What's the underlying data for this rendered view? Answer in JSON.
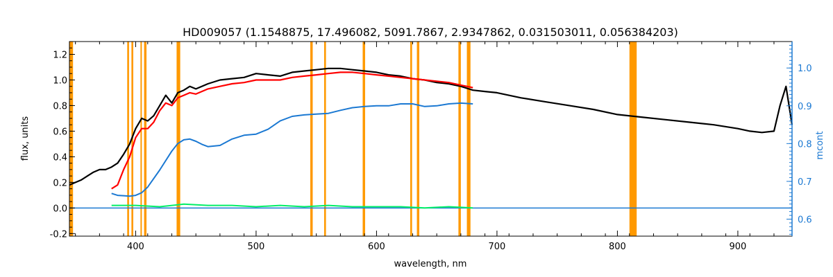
{
  "chart_data": {
    "type": "line",
    "title": "HD009057    (1.1548875, 17.496082, 5091.7867, 2.9347862, 0.031503011, 0.056384203)",
    "xlabel": "wavelength, nm",
    "ylabel": "flux, units",
    "y2label": "mcont",
    "xlim": [
      345,
      945
    ],
    "ylim": [
      -0.22,
      1.3
    ],
    "y2lim": [
      0.555,
      1.07
    ],
    "x_ticks": [
      400,
      500,
      600,
      700,
      800,
      900
    ],
    "y_ticks": [
      -0.2,
      0.0,
      0.2,
      0.4,
      0.6,
      0.8,
      1.0,
      1.2
    ],
    "y2_ticks": [
      0.6,
      0.7,
      0.8,
      0.9,
      1.0
    ],
    "x_tick_labels": [
      "400",
      "500",
      "600",
      "700",
      "800",
      "900"
    ],
    "y_tick_labels": [
      "-0.2",
      "0.0",
      "0.2",
      "0.4",
      "0.6",
      "0.8",
      "1.0",
      "1.2"
    ],
    "y2_tick_labels": [
      "0.6",
      "0.7",
      "0.8",
      "0.9",
      "1.0"
    ],
    "grid": false,
    "colors": {
      "observed": "#000000",
      "model": "#ff0000",
      "continuum": "#1a78d2",
      "residual": "#00ee66",
      "masked": "#ff9900",
      "right_axis": "#1a78d2"
    },
    "masked_bands": [
      [
        345,
        348
      ],
      [
        393,
        394.5
      ],
      [
        396.5,
        398
      ],
      [
        404,
        405
      ],
      [
        407,
        409
      ],
      [
        434,
        437
      ],
      [
        545,
        547
      ],
      [
        556.5,
        558
      ],
      [
        588.5,
        590.5
      ],
      [
        628,
        629.5
      ],
      [
        633.5,
        635.5
      ],
      [
        668,
        670
      ],
      [
        675,
        678
      ],
      [
        810,
        816
      ]
    ],
    "series": [
      {
        "key": "observed",
        "x": [
          345,
          350,
          355,
          360,
          365,
          370,
          375,
          380,
          385,
          390,
          395,
          400,
          405,
          410,
          415,
          420,
          425,
          430,
          435,
          440,
          445,
          450,
          460,
          470,
          480,
          490,
          500,
          510,
          520,
          530,
          540,
          550,
          560,
          570,
          580,
          590,
          600,
          610,
          620,
          630,
          640,
          650,
          660,
          670,
          680,
          690,
          700,
          720,
          740,
          760,
          780,
          800,
          820,
          840,
          860,
          880,
          900,
          910,
          920,
          930,
          935,
          940,
          945
        ],
        "y": [
          0.18,
          0.2,
          0.22,
          0.25,
          0.28,
          0.3,
          0.3,
          0.32,
          0.35,
          0.42,
          0.5,
          0.62,
          0.7,
          0.68,
          0.72,
          0.8,
          0.88,
          0.82,
          0.9,
          0.92,
          0.95,
          0.93,
          0.97,
          1.0,
          1.01,
          1.02,
          1.05,
          1.04,
          1.03,
          1.06,
          1.07,
          1.08,
          1.09,
          1.09,
          1.08,
          1.07,
          1.06,
          1.04,
          1.03,
          1.01,
          1.0,
          0.98,
          0.97,
          0.95,
          0.92,
          0.91,
          0.9,
          0.86,
          0.83,
          0.8,
          0.77,
          0.73,
          0.71,
          0.69,
          0.67,
          0.65,
          0.62,
          0.6,
          0.59,
          0.6,
          0.8,
          0.95,
          0.65
        ]
      },
      {
        "key": "model",
        "x": [
          380,
          385,
          390,
          395,
          400,
          405,
          410,
          415,
          420,
          425,
          430,
          435,
          440,
          445,
          450,
          460,
          470,
          480,
          490,
          500,
          510,
          520,
          530,
          540,
          550,
          560,
          570,
          580,
          590,
          600,
          610,
          620,
          630,
          640,
          650,
          660,
          670,
          680
        ],
        "y": [
          0.15,
          0.18,
          0.3,
          0.4,
          0.55,
          0.62,
          0.62,
          0.67,
          0.76,
          0.82,
          0.8,
          0.86,
          0.88,
          0.9,
          0.89,
          0.93,
          0.95,
          0.97,
          0.98,
          1.0,
          1.0,
          1.0,
          1.02,
          1.03,
          1.04,
          1.05,
          1.06,
          1.06,
          1.05,
          1.04,
          1.03,
          1.02,
          1.01,
          1.0,
          0.99,
          0.98,
          0.96,
          0.94
        ]
      },
      {
        "key": "continuum",
        "axis": "right",
        "x": [
          380,
          385,
          390,
          395,
          400,
          405,
          410,
          420,
          430,
          435,
          440,
          445,
          450,
          455,
          460,
          470,
          480,
          490,
          500,
          510,
          520,
          530,
          540,
          550,
          560,
          570,
          580,
          590,
          600,
          610,
          620,
          630,
          640,
          650,
          660,
          670,
          680
        ],
        "y": [
          0.668,
          0.663,
          0.662,
          0.661,
          0.663,
          0.67,
          0.685,
          0.73,
          0.78,
          0.8,
          0.81,
          0.812,
          0.806,
          0.798,
          0.792,
          0.795,
          0.812,
          0.822,
          0.825,
          0.838,
          0.86,
          0.872,
          0.876,
          0.878,
          0.88,
          0.888,
          0.895,
          0.898,
          0.9,
          0.9,
          0.905,
          0.905,
          0.898,
          0.9,
          0.905,
          0.907,
          0.905
        ]
      },
      {
        "key": "residual",
        "x": [
          380,
          400,
          420,
          440,
          460,
          480,
          500,
          520,
          540,
          560,
          580,
          600,
          620,
          640,
          660,
          680
        ],
        "y": [
          0.02,
          0.02,
          0.01,
          0.03,
          0.02,
          0.02,
          0.01,
          0.02,
          0.01,
          0.02,
          0.01,
          0.01,
          0.01,
          0.0,
          0.01,
          0.0
        ]
      }
    ],
    "baseline": {
      "x": [
        345,
        945
      ],
      "y": [
        0.0,
        0.0
      ]
    }
  }
}
